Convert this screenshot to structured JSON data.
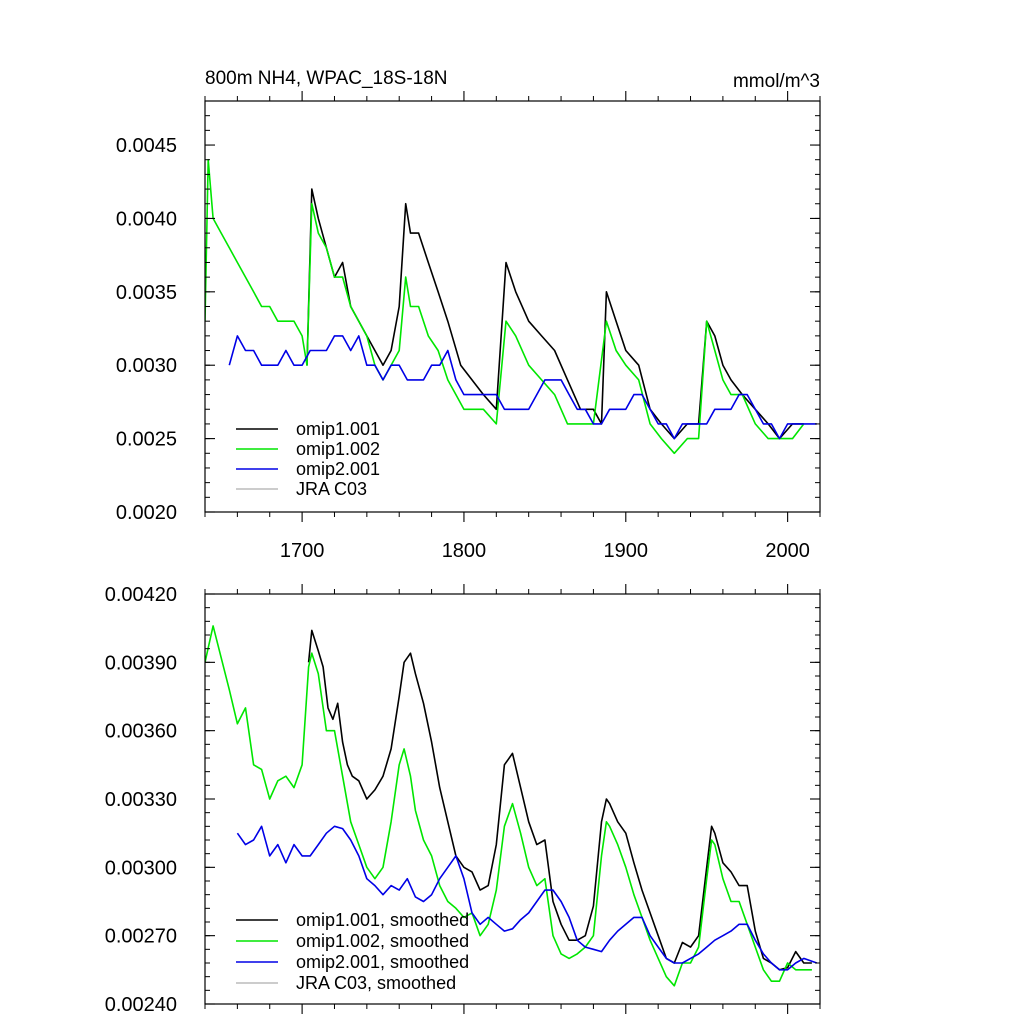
{
  "chart_data": [
    {
      "type": "line",
      "title": "800m NH4, WPAC_18S-18N",
      "units": "mmol/m^3",
      "xlabel": "",
      "ylabel": "",
      "xlim": [
        1640,
        2020
      ],
      "ylim": [
        0.002,
        0.0048
      ],
      "xticks": [
        1700,
        1800,
        1900,
        2000
      ],
      "xtick_labels": [
        "1700",
        "1800",
        "1900",
        "2000"
      ],
      "yticks": [
        0.002,
        0.0025,
        0.003,
        0.0035,
        0.004,
        0.0045
      ],
      "ytick_labels": [
        "0.0020",
        "0.0025",
        "0.0030",
        "0.0035",
        "0.0040",
        "0.0045"
      ],
      "legend_position": "bottom-left",
      "grid": false,
      "series": [
        {
          "name": "omip1.001",
          "color": "#000000",
          "x": [
            1703,
            1706,
            1710,
            1715,
            1720,
            1725,
            1730,
            1740,
            1750,
            1755,
            1760,
            1764,
            1767,
            1772,
            1778,
            1784,
            1790,
            1798,
            1805,
            1812,
            1820,
            1826,
            1832,
            1840,
            1848,
            1856,
            1864,
            1872,
            1880,
            1885,
            1888,
            1894,
            1900,
            1908,
            1915,
            1922,
            1930,
            1938,
            1945,
            1950,
            1955,
            1960,
            1965,
            1972,
            1980,
            1988,
            1995,
            2003,
            2010
          ],
          "values": [
            0.003,
            0.0042,
            0.004,
            0.0038,
            0.0036,
            0.0037,
            0.0034,
            0.0032,
            0.003,
            0.0031,
            0.0034,
            0.0041,
            0.0039,
            0.0039,
            0.0037,
            0.0035,
            0.0033,
            0.003,
            0.0029,
            0.0028,
            0.0027,
            0.0037,
            0.0035,
            0.0033,
            0.0032,
            0.0031,
            0.0029,
            0.0027,
            0.0027,
            0.0026,
            0.0035,
            0.0033,
            0.0031,
            0.003,
            0.0027,
            0.0026,
            0.0025,
            0.0026,
            0.0026,
            0.0033,
            0.0032,
            0.003,
            0.0029,
            0.0028,
            0.0027,
            0.0026,
            0.0025,
            0.0026,
            0.0026
          ]
        },
        {
          "name": "omip1.002",
          "color": "#00e600",
          "x": [
            1640,
            1642,
            1645,
            1650,
            1655,
            1660,
            1665,
            1670,
            1675,
            1680,
            1685,
            1690,
            1695,
            1700,
            1703,
            1706,
            1710,
            1715,
            1720,
            1725,
            1730,
            1735,
            1740,
            1745,
            1750,
            1755,
            1760,
            1764,
            1767,
            1772,
            1778,
            1784,
            1790,
            1795,
            1800,
            1805,
            1812,
            1820,
            1826,
            1832,
            1840,
            1848,
            1856,
            1864,
            1872,
            1880,
            1888,
            1894,
            1900,
            1908,
            1915,
            1922,
            1930,
            1938,
            1945,
            1950,
            1955,
            1960,
            1965,
            1972,
            1980,
            1988,
            1995,
            2003,
            2010
          ],
          "values": [
            0.0033,
            0.0044,
            0.004,
            0.0039,
            0.0038,
            0.0037,
            0.0036,
            0.0035,
            0.0034,
            0.0034,
            0.0033,
            0.0033,
            0.0033,
            0.0032,
            0.003,
            0.0041,
            0.0039,
            0.0038,
            0.0036,
            0.0036,
            0.0034,
            0.0033,
            0.0032,
            0.003,
            0.0029,
            0.003,
            0.0031,
            0.0036,
            0.0034,
            0.0034,
            0.0032,
            0.0031,
            0.0029,
            0.0028,
            0.0027,
            0.0027,
            0.0027,
            0.0026,
            0.0033,
            0.0032,
            0.003,
            0.0029,
            0.0028,
            0.0026,
            0.0026,
            0.0026,
            0.0033,
            0.0031,
            0.003,
            0.0029,
            0.0026,
            0.0025,
            0.0024,
            0.0025,
            0.0025,
            0.0033,
            0.0031,
            0.0029,
            0.0028,
            0.0028,
            0.0026,
            0.0025,
            0.0025,
            0.0025,
            0.0026
          ]
        },
        {
          "name": "omip2.001",
          "color": "#0000e6",
          "x": [
            1655,
            1660,
            1665,
            1670,
            1675,
            1680,
            1685,
            1690,
            1695,
            1700,
            1705,
            1710,
            1715,
            1720,
            1725,
            1730,
            1735,
            1740,
            1745,
            1750,
            1755,
            1760,
            1765,
            1770,
            1775,
            1780,
            1785,
            1790,
            1795,
            1800,
            1805,
            1810,
            1815,
            1820,
            1825,
            1830,
            1835,
            1840,
            1845,
            1850,
            1855,
            1860,
            1865,
            1870,
            1875,
            1880,
            1885,
            1890,
            1895,
            1900,
            1905,
            1910,
            1915,
            1920,
            1925,
            1930,
            1935,
            1940,
            1945,
            1950,
            1955,
            1960,
            1965,
            1970,
            1975,
            1980,
            1985,
            1990,
            1995,
            2000,
            2005,
            2010,
            2018
          ],
          "values": [
            0.003,
            0.0032,
            0.0031,
            0.0031,
            0.003,
            0.003,
            0.003,
            0.0031,
            0.003,
            0.003,
            0.0031,
            0.0031,
            0.0031,
            0.0032,
            0.0032,
            0.0031,
            0.0032,
            0.003,
            0.003,
            0.0029,
            0.003,
            0.003,
            0.0029,
            0.0029,
            0.0029,
            0.003,
            0.003,
            0.0031,
            0.0029,
            0.0028,
            0.0028,
            0.0028,
            0.0028,
            0.0028,
            0.0027,
            0.0027,
            0.0027,
            0.0027,
            0.0028,
            0.0029,
            0.0029,
            0.0029,
            0.0028,
            0.0027,
            0.0027,
            0.0026,
            0.0026,
            0.0027,
            0.0027,
            0.0027,
            0.0028,
            0.0028,
            0.0027,
            0.0026,
            0.0026,
            0.0025,
            0.0026,
            0.0026,
            0.0026,
            0.0026,
            0.0027,
            0.0027,
            0.0027,
            0.0028,
            0.0028,
            0.0027,
            0.0026,
            0.0026,
            0.0025,
            0.0026,
            0.0026,
            0.0026,
            0.0026
          ]
        },
        {
          "name": "JRA C03",
          "color": "#bbbbbb",
          "x": [],
          "values": []
        }
      ]
    },
    {
      "type": "line",
      "title": "",
      "xlabel": "",
      "ylabel": "",
      "xlim": [
        1640,
        2020
      ],
      "ylim": [
        0.0024,
        0.0042
      ],
      "xticks": [
        1700,
        1800,
        1900,
        2000
      ],
      "xtick_labels": [
        "",
        "",
        "",
        ""
      ],
      "yticks": [
        0.0024,
        0.0027,
        0.003,
        0.0033,
        0.0036,
        0.0039,
        0.0042
      ],
      "ytick_labels": [
        "0.00240",
        "0.00270",
        "0.00300",
        "0.00330",
        "0.00360",
        "0.00390",
        "0.00420"
      ],
      "legend_position": "bottom-left",
      "grid": false,
      "series": [
        {
          "name": "omip1.001, smoothed",
          "color": "#000000",
          "x": [
            1704,
            1706,
            1710,
            1713,
            1716,
            1719,
            1722,
            1725,
            1728,
            1731,
            1735,
            1740,
            1745,
            1750,
            1755,
            1760,
            1763,
            1767,
            1770,
            1775,
            1780,
            1785,
            1790,
            1795,
            1800,
            1805,
            1810,
            1815,
            1820,
            1825,
            1830,
            1835,
            1840,
            1845,
            1850,
            1855,
            1860,
            1865,
            1870,
            1875,
            1880,
            1885,
            1888,
            1890,
            1895,
            1900,
            1905,
            1910,
            1915,
            1920,
            1925,
            1930,
            1935,
            1940,
            1945,
            1950,
            1953,
            1955,
            1960,
            1965,
            1970,
            1975,
            1980,
            1985,
            1990,
            1995,
            2000,
            2005,
            2010,
            2015
          ],
          "values": [
            0.0039,
            0.00404,
            0.00395,
            0.00388,
            0.0037,
            0.00365,
            0.00372,
            0.00355,
            0.00345,
            0.0034,
            0.00338,
            0.0033,
            0.00334,
            0.0034,
            0.00352,
            0.00375,
            0.0039,
            0.00394,
            0.00385,
            0.00372,
            0.00355,
            0.00335,
            0.0032,
            0.00305,
            0.003,
            0.00298,
            0.0029,
            0.00292,
            0.0031,
            0.00345,
            0.0035,
            0.00335,
            0.0032,
            0.0031,
            0.00312,
            0.00285,
            0.00275,
            0.00268,
            0.00268,
            0.0027,
            0.00283,
            0.0032,
            0.0033,
            0.00328,
            0.0032,
            0.00315,
            0.00302,
            0.0029,
            0.0028,
            0.0027,
            0.0026,
            0.00258,
            0.00267,
            0.00265,
            0.0027,
            0.003,
            0.00318,
            0.00315,
            0.00302,
            0.00298,
            0.00292,
            0.00292,
            0.00272,
            0.0026,
            0.00258,
            0.00255,
            0.00256,
            0.00263,
            0.00258,
            0.00258
          ]
        },
        {
          "name": "omip1.002, smoothed",
          "color": "#00e600",
          "x": [
            1640,
            1645,
            1650,
            1655,
            1660,
            1665,
            1670,
            1675,
            1680,
            1685,
            1690,
            1695,
            1700,
            1704,
            1706,
            1710,
            1715,
            1720,
            1725,
            1730,
            1735,
            1740,
            1745,
            1750,
            1755,
            1760,
            1763,
            1767,
            1770,
            1775,
            1780,
            1785,
            1790,
            1795,
            1800,
            1805,
            1810,
            1815,
            1820,
            1825,
            1830,
            1835,
            1840,
            1845,
            1850,
            1855,
            1860,
            1865,
            1870,
            1875,
            1880,
            1885,
            1888,
            1890,
            1895,
            1900,
            1905,
            1910,
            1915,
            1920,
            1925,
            1930,
            1935,
            1940,
            1945,
            1950,
            1953,
            1955,
            1960,
            1965,
            1970,
            1975,
            1980,
            1985,
            1990,
            1995,
            2000,
            2005,
            2010,
            2015
          ],
          "values": [
            0.0039,
            0.00406,
            0.00392,
            0.00378,
            0.00363,
            0.0037,
            0.00345,
            0.00343,
            0.0033,
            0.00338,
            0.0034,
            0.00335,
            0.00345,
            0.00388,
            0.00394,
            0.00385,
            0.0036,
            0.0036,
            0.0034,
            0.0032,
            0.0031,
            0.003,
            0.00295,
            0.003,
            0.0032,
            0.00345,
            0.00352,
            0.0034,
            0.00325,
            0.00312,
            0.00305,
            0.00292,
            0.00285,
            0.00282,
            0.00278,
            0.0028,
            0.0027,
            0.00275,
            0.0029,
            0.00318,
            0.00328,
            0.00315,
            0.003,
            0.00292,
            0.00295,
            0.0027,
            0.00262,
            0.0026,
            0.00262,
            0.00265,
            0.0027,
            0.00305,
            0.0032,
            0.00318,
            0.0031,
            0.003,
            0.00288,
            0.00278,
            0.00268,
            0.0026,
            0.00252,
            0.00248,
            0.00258,
            0.00258,
            0.00265,
            0.00295,
            0.00312,
            0.0031,
            0.00295,
            0.00285,
            0.00285,
            0.00275,
            0.00265,
            0.00255,
            0.0025,
            0.0025,
            0.00258,
            0.00255,
            0.00255,
            0.00255
          ]
        },
        {
          "name": "omip2.001, smoothed",
          "color": "#0000e6",
          "x": [
            1660,
            1665,
            1670,
            1675,
            1680,
            1685,
            1690,
            1695,
            1700,
            1705,
            1710,
            1715,
            1720,
            1725,
            1730,
            1735,
            1740,
            1745,
            1750,
            1755,
            1760,
            1765,
            1770,
            1775,
            1780,
            1785,
            1790,
            1795,
            1800,
            1805,
            1810,
            1815,
            1820,
            1825,
            1830,
            1835,
            1840,
            1845,
            1850,
            1855,
            1860,
            1865,
            1870,
            1875,
            1880,
            1885,
            1890,
            1895,
            1900,
            1905,
            1910,
            1915,
            1920,
            1925,
            1930,
            1935,
            1940,
            1945,
            1950,
            1955,
            1960,
            1965,
            1970,
            1975,
            1980,
            1985,
            1990,
            1995,
            2000,
            2005,
            2010,
            2018
          ],
          "values": [
            0.00315,
            0.0031,
            0.00312,
            0.00318,
            0.00305,
            0.0031,
            0.00302,
            0.0031,
            0.00305,
            0.00305,
            0.0031,
            0.00315,
            0.00318,
            0.00317,
            0.00312,
            0.00305,
            0.00295,
            0.00292,
            0.00288,
            0.00292,
            0.0029,
            0.00295,
            0.00287,
            0.00285,
            0.00288,
            0.00295,
            0.003,
            0.00305,
            0.00295,
            0.0028,
            0.00275,
            0.00278,
            0.00275,
            0.00272,
            0.00273,
            0.00277,
            0.0028,
            0.00285,
            0.0029,
            0.0029,
            0.00285,
            0.00278,
            0.00268,
            0.00265,
            0.00264,
            0.00263,
            0.00268,
            0.00272,
            0.00275,
            0.00278,
            0.00278,
            0.0027,
            0.00265,
            0.0026,
            0.00258,
            0.00258,
            0.0026,
            0.00262,
            0.00265,
            0.00268,
            0.0027,
            0.00272,
            0.00275,
            0.00275,
            0.00268,
            0.00262,
            0.00258,
            0.00255,
            0.00255,
            0.00258,
            0.0026,
            0.00258
          ]
        },
        {
          "name": "JRA C03, smoothed",
          "color": "#bbbbbb",
          "x": [],
          "values": []
        }
      ]
    }
  ]
}
